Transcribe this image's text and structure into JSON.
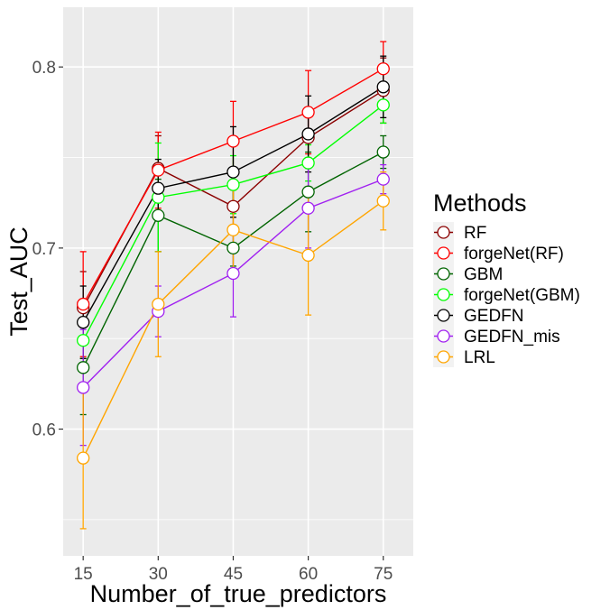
{
  "chart_data": {
    "type": "line",
    "xlabel": "Number_of_true_predictors",
    "ylabel": "Test_AUC",
    "x": [
      15,
      30,
      45,
      60,
      75
    ],
    "xlim": [
      11,
      81
    ],
    "ylim": [
      0.53,
      0.833
    ],
    "yticks": [
      0.6,
      0.7,
      0.8
    ],
    "ytick_labels": [
      "0.6",
      "0.7",
      "0.8"
    ],
    "grid": true,
    "legend_title": "Methods",
    "legend_position": "right",
    "series": [
      {
        "name": "RF",
        "color": "#8b0000",
        "values": [
          0.667,
          0.744,
          0.723,
          0.761,
          0.787
        ],
        "errors": [
          0.02,
          0.018,
          0.014,
          0.014,
          0.018
        ]
      },
      {
        "name": "forgeNet(RF)",
        "color": "#ff0000",
        "values": [
          0.669,
          0.743,
          0.759,
          0.775,
          0.799
        ],
        "errors": [
          0.029,
          0.021,
          0.022,
          0.023,
          0.015
        ]
      },
      {
        "name": "GBM",
        "color": "#006400",
        "values": [
          0.634,
          0.718,
          0.7,
          0.731,
          0.753
        ],
        "errors": [
          0.026,
          0.02,
          0.01,
          0.022,
          0.009
        ]
      },
      {
        "name": "forgeNet(GBM)",
        "color": "#00ff00",
        "values": [
          0.649,
          0.728,
          0.735,
          0.747,
          0.779
        ],
        "errors": [
          0.01,
          0.03,
          0.016,
          0.01,
          0.01
        ]
      },
      {
        "name": "GEDFN",
        "color": "#000000",
        "values": [
          0.659,
          0.733,
          0.742,
          0.763,
          0.789
        ],
        "errors": [
          0.02,
          0.016,
          0.025,
          0.021,
          0.017
        ]
      },
      {
        "name": "GEDFN_mis",
        "color": "#a020f0",
        "values": [
          0.623,
          0.665,
          0.686,
          0.722,
          0.738
        ],
        "errors": [
          0.032,
          0.014,
          0.024,
          0.022,
          0.008
        ]
      },
      {
        "name": "LRL",
        "color": "#ffa500",
        "values": [
          0.584,
          0.669,
          0.71,
          0.696,
          0.726
        ],
        "errors": [
          0.039,
          0.029,
          0.022,
          0.033,
          0.016
        ]
      }
    ]
  }
}
